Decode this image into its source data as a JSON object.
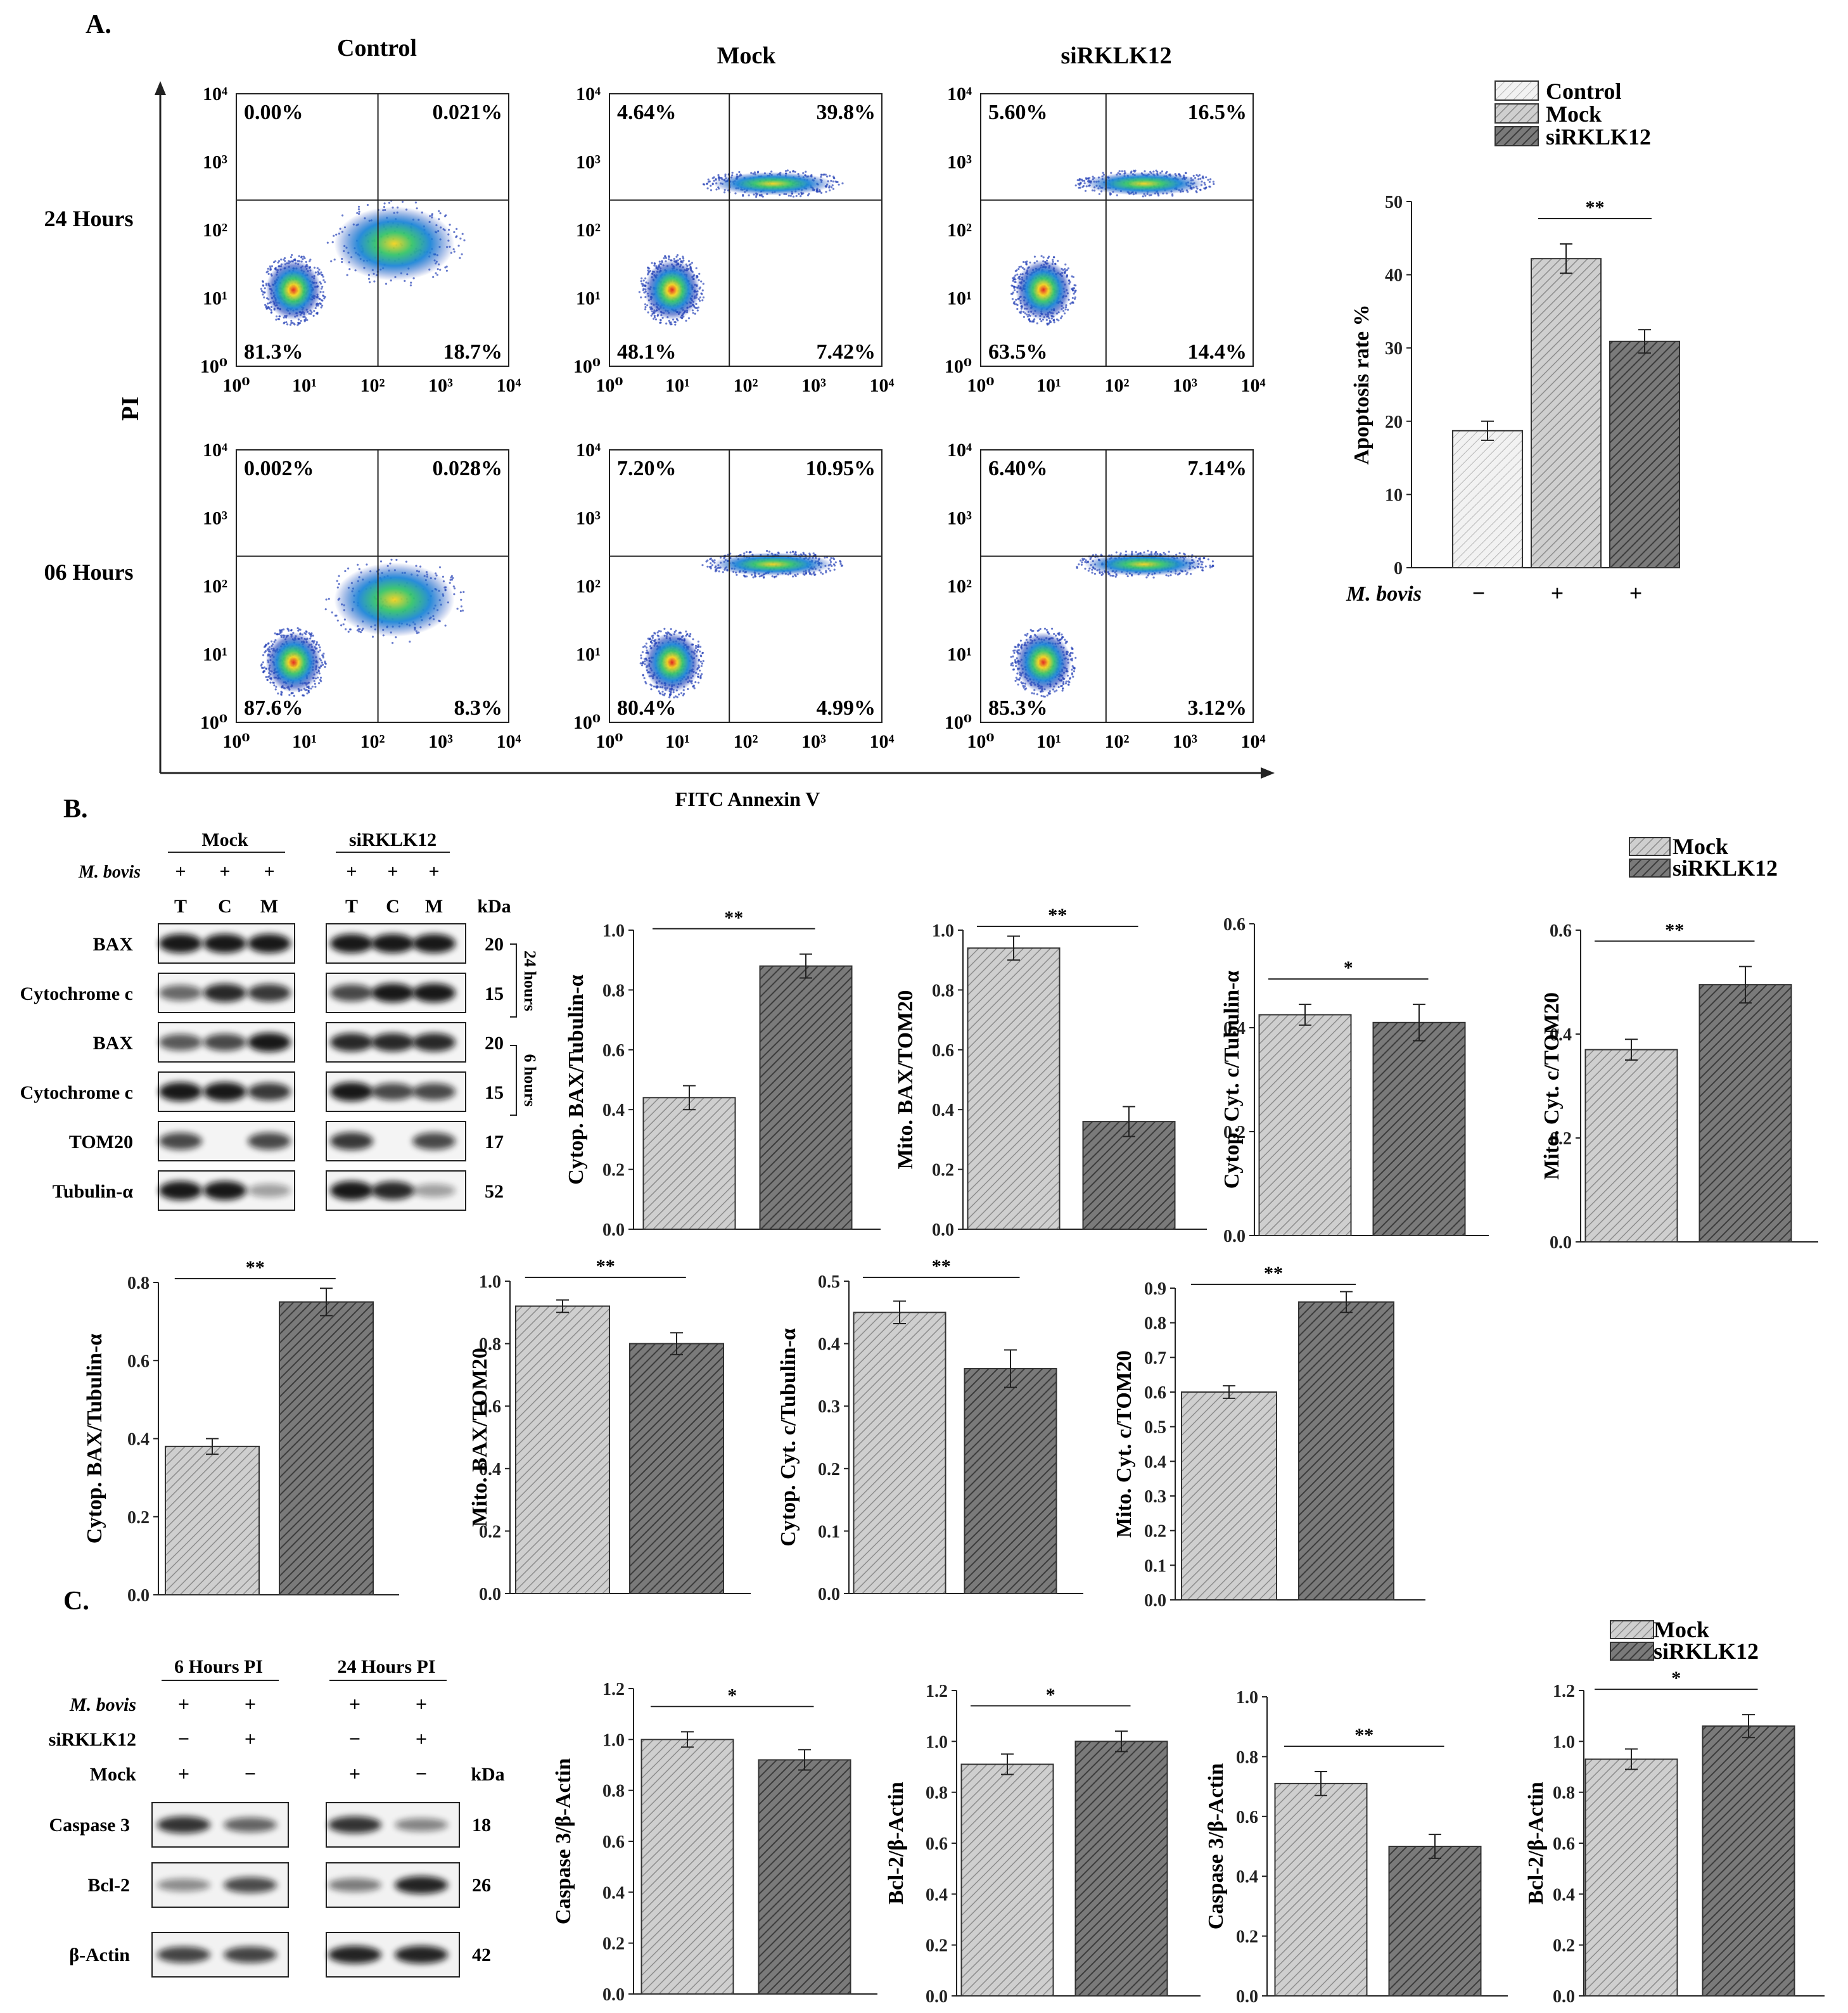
{
  "panels": {
    "A": "A.",
    "B": "B.",
    "C": "C."
  },
  "colors": {
    "mock_fill": "#c8c8c8",
    "sirklk12_fill": "#6e6e6e",
    "control_fill": "#ededed",
    "hatch": "#444444"
  },
  "flow": {
    "col_titles": [
      "Control",
      "Mock",
      "siRKLK12"
    ],
    "row_titles": [
      "24 Hours",
      "06 Hours"
    ],
    "y_axis_label": "PI",
    "x_axis_label": "FITC Annexin V",
    "tick_labels": [
      "10⁰",
      "10¹",
      "10²",
      "10³",
      "10⁴"
    ],
    "plots": [
      {
        "quadrants": [
          "0.00%",
          "0.021%",
          "81.3%",
          "18.7%"
        ]
      },
      {
        "quadrants": [
          "4.64%",
          "39.8%",
          "48.1%",
          "7.42%"
        ]
      },
      {
        "quadrants": [
          "5.60%",
          "16.5%",
          "63.5%",
          "14.4%"
        ]
      },
      {
        "quadrants": [
          "0.002%",
          "0.028%",
          "87.6%",
          "8.3%"
        ]
      },
      {
        "quadrants": [
          "7.20%",
          "10.95%",
          "80.4%",
          "4.99%"
        ]
      },
      {
        "quadrants": [
          "6.40%",
          "7.14%",
          "85.3%",
          "3.12%"
        ]
      }
    ]
  },
  "legend_a": [
    "Control",
    "Mock",
    "siRKLK12"
  ],
  "legend_b": [
    "Mock",
    "siRKLK12"
  ],
  "legend_c": [
    "Mock",
    "siRKLK12"
  ],
  "western_b": {
    "group_titles": [
      "Mock",
      "siRKLK12"
    ],
    "treatment_label": "M. bovis",
    "plus": "+",
    "lane_labels": [
      "T",
      "C",
      "M"
    ],
    "kda": "kDa",
    "proteins": [
      "BAX",
      "Cytochrome c",
      "BAX",
      "Cytochrome c",
      "TOM20",
      "Tubulin-α"
    ],
    "sizes": [
      "20",
      "15",
      "20",
      "15",
      "17",
      "52"
    ],
    "time_labels": [
      "24 hours",
      "6 hours"
    ]
  },
  "western_c": {
    "group_titles": [
      "6 Hours PI",
      "24 Hours PI"
    ],
    "row_labels": [
      "M. bovis",
      "siRKLK12",
      "Mock"
    ],
    "signs": [
      [
        "+",
        "+",
        "+",
        "+"
      ],
      [
        "−",
        "+",
        "−",
        "+"
      ],
      [
        "+",
        "−",
        "+",
        "−"
      ]
    ],
    "kda": "kDa",
    "proteins": [
      "Caspase 3",
      "Bcl-2",
      "β-Actin"
    ],
    "sizes": [
      "18",
      "26",
      "42"
    ]
  },
  "chart_data": [
    {
      "id": "apoptosis",
      "type": "bar",
      "title": "",
      "ylabel": "Apoptosis rate %",
      "xlabel": "M. bovis",
      "categories": [
        "−",
        "+",
        "+"
      ],
      "series_names": [
        "Control",
        "Mock",
        "siRKLK12"
      ],
      "values": [
        18.7,
        42.2,
        30.9
      ],
      "errors": [
        1.3,
        2.0,
        1.6
      ],
      "ylim": [
        0,
        50
      ],
      "yticks": [
        "0",
        "10",
        "20",
        "30",
        "40",
        "50"
      ],
      "significance": "**"
    },
    {
      "id": "b1",
      "type": "bar",
      "ylabel": "Cytop. BAX/Tubulin-α",
      "series_names": [
        "Mock",
        "siRKLK12"
      ],
      "values": [
        0.44,
        0.88
      ],
      "errors": [
        0.04,
        0.04
      ],
      "ylim": [
        0,
        1.0
      ],
      "yticks": [
        "0.0",
        "0.2",
        "0.4",
        "0.6",
        "0.8",
        "1.0"
      ],
      "significance": "**"
    },
    {
      "id": "b2",
      "type": "bar",
      "ylabel": "Mito. BAX/TOM20",
      "series_names": [
        "Mock",
        "siRKLK12"
      ],
      "values": [
        0.94,
        0.36
      ],
      "errors": [
        0.04,
        0.05
      ],
      "ylim": [
        0,
        1.0
      ],
      "yticks": [
        "0.0",
        "0.2",
        "0.4",
        "0.6",
        "0.8",
        "1.0"
      ],
      "significance": "**"
    },
    {
      "id": "b3",
      "type": "bar",
      "ylabel": "Cytop. Cyt. c/Tubulin-α",
      "series_names": [
        "Mock",
        "siRKLK12"
      ],
      "values": [
        0.425,
        0.41
      ],
      "errors": [
        0.02,
        0.035
      ],
      "ylim": [
        0,
        0.6
      ],
      "yticks": [
        "0.0",
        "0.2",
        "0.4",
        "0.6"
      ],
      "significance": "*"
    },
    {
      "id": "b4",
      "type": "bar",
      "ylabel": "Mito. Cyt. c/TOM20",
      "series_names": [
        "Mock",
        "siRKLK12"
      ],
      "values": [
        0.37,
        0.495
      ],
      "errors": [
        0.02,
        0.035
      ],
      "ylim": [
        0,
        0.6
      ],
      "yticks": [
        "0.0",
        "0.2",
        "0.4",
        "0.6"
      ],
      "significance": "**"
    },
    {
      "id": "b5",
      "type": "bar",
      "ylabel": "Cytop. BAX/Tubulin-α",
      "series_names": [
        "Mock",
        "siRKLK12"
      ],
      "values": [
        0.38,
        0.75
      ],
      "errors": [
        0.02,
        0.035
      ],
      "ylim": [
        0,
        0.8
      ],
      "yticks": [
        "0.0",
        "0.2",
        "0.4",
        "0.6",
        "0.8"
      ],
      "significance": "**"
    },
    {
      "id": "b6",
      "type": "bar",
      "ylabel": "Mito. BAX/TOM20",
      "series_names": [
        "Mock",
        "siRKLK12"
      ],
      "values": [
        0.92,
        0.8
      ],
      "errors": [
        0.02,
        0.035
      ],
      "ylim": [
        0,
        1.0
      ],
      "yticks": [
        "0.0",
        "0.2",
        "0.4",
        "0.6",
        "0.8",
        "1.0"
      ],
      "significance": "**"
    },
    {
      "id": "b7",
      "type": "bar",
      "ylabel": "Cytop. Cyt. c/Tubulin-α",
      "series_names": [
        "Mock",
        "siRKLK12"
      ],
      "values": [
        0.45,
        0.36
      ],
      "errors": [
        0.018,
        0.03
      ],
      "ylim": [
        0,
        0.5
      ],
      "yticks": [
        "0.0",
        "0.1",
        "0.2",
        "0.3",
        "0.4",
        "0.5"
      ],
      "significance": "**"
    },
    {
      "id": "b8",
      "type": "bar",
      "ylabel": "Mito. Cyt. c/TOM20",
      "series_names": [
        "Mock",
        "siRKLK12"
      ],
      "values": [
        0.6,
        0.86
      ],
      "errors": [
        0.018,
        0.03
      ],
      "ylim": [
        0,
        0.9
      ],
      "yticks": [
        "0.0",
        "0.1",
        "0.2",
        "0.3",
        "0.4",
        "0.5",
        "0.6",
        "0.7",
        "0.8",
        "0.9"
      ],
      "significance": "**"
    },
    {
      "id": "c1",
      "type": "bar",
      "ylabel": "Caspase 3/β-Actin",
      "series_names": [
        "Mock",
        "siRKLK12"
      ],
      "values": [
        1.0,
        0.92
      ],
      "errors": [
        0.03,
        0.04
      ],
      "ylim": [
        0,
        1.2
      ],
      "yticks": [
        "0.0",
        "0.2",
        "0.4",
        "0.6",
        "0.8",
        "1.0",
        "1.2"
      ],
      "significance": "*"
    },
    {
      "id": "c2",
      "type": "bar",
      "ylabel": "Bcl-2/β-Actin",
      "series_names": [
        "Mock",
        "siRKLK12"
      ],
      "values": [
        0.91,
        1.0
      ],
      "errors": [
        0.04,
        0.04
      ],
      "ylim": [
        0,
        1.2
      ],
      "yticks": [
        "0.0",
        "0.2",
        "0.4",
        "0.6",
        "0.8",
        "1.0",
        "1.2"
      ],
      "significance": "*"
    },
    {
      "id": "c3",
      "type": "bar",
      "ylabel": "Caspase 3/β-Actin",
      "series_names": [
        "Mock",
        "siRKLK12"
      ],
      "values": [
        0.71,
        0.5
      ],
      "errors": [
        0.04,
        0.04
      ],
      "ylim": [
        0,
        1.0
      ],
      "yticks": [
        "0.0",
        "0.2",
        "0.4",
        "0.6",
        "0.8",
        "1.0"
      ],
      "significance": "**"
    },
    {
      "id": "c4",
      "type": "bar",
      "ylabel": "Bcl-2/β-Actin",
      "series_names": [
        "Mock",
        "siRKLK12"
      ],
      "values": [
        0.93,
        1.06
      ],
      "errors": [
        0.04,
        0.045
      ],
      "ylim": [
        0,
        1.2
      ],
      "yticks": [
        "0.0",
        "0.2",
        "0.4",
        "0.6",
        "0.8",
        "1.0",
        "1.2"
      ],
      "significance": "*"
    }
  ]
}
